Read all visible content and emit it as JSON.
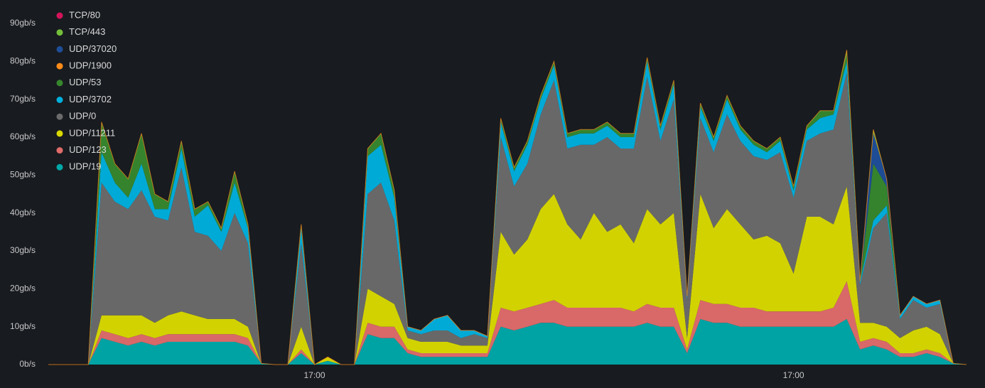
{
  "chart_data": {
    "type": "stacked-area",
    "categories": [
      null,
      null,
      null,
      null,
      null,
      null,
      null,
      null,
      null,
      null,
      null,
      null,
      null,
      null,
      null,
      null,
      null,
      null,
      null,
      null,
      "17:00",
      null,
      null,
      null,
      null,
      null,
      null,
      null,
      null,
      null,
      null,
      null,
      null,
      null,
      null,
      null,
      null,
      null,
      null,
      null,
      null,
      null,
      null,
      null,
      null,
      null,
      null,
      null,
      null,
      null,
      null,
      null,
      null,
      null,
      null,
      null,
      "17:00",
      null,
      null,
      null,
      null,
      null,
      null,
      null,
      null,
      null,
      null,
      null,
      null,
      null
    ],
    "ylim": [
      0,
      90
    ],
    "yticks": [
      {
        "value": 0,
        "label": "0b/s"
      },
      {
        "value": 10,
        "label": "10gb/s"
      },
      {
        "value": 20,
        "label": "20gb/s"
      },
      {
        "value": 30,
        "label": "30gb/s"
      },
      {
        "value": 40,
        "label": "40gb/s"
      },
      {
        "value": 50,
        "label": "50gb/s"
      },
      {
        "value": 60,
        "label": "60gb/s"
      },
      {
        "value": 70,
        "label": "70gb/s"
      },
      {
        "value": 80,
        "label": "80gb/s"
      },
      {
        "value": 90,
        "label": "90gb/s"
      }
    ],
    "grid": false,
    "legend": "top-left",
    "series": [
      {
        "name": "TCP/80",
        "color": "#d4145a",
        "values": [
          0,
          0,
          0,
          0,
          0,
          0,
          0,
          0,
          0,
          0,
          0,
          0,
          0,
          0,
          0,
          0,
          0,
          0,
          0,
          0,
          0,
          0,
          0,
          0,
          0,
          0,
          0,
          0,
          0,
          0,
          0,
          0,
          0,
          0,
          0,
          0,
          0,
          0,
          0,
          0,
          0,
          0,
          0,
          0,
          0,
          0,
          0,
          0,
          0,
          0,
          0,
          0,
          0,
          0,
          0,
          0,
          0,
          0,
          0,
          0,
          0,
          0,
          0,
          0,
          0,
          0,
          0,
          0,
          0,
          0
        ]
      },
      {
        "name": "TCP/443",
        "color": "#73bf3a",
        "values": [
          0,
          0,
          0,
          0,
          0,
          0,
          0,
          0,
          0,
          0,
          0,
          0,
          0,
          0,
          0,
          0,
          0,
          0,
          0,
          0,
          0,
          0,
          0,
          0,
          0,
          0,
          0,
          0,
          0,
          0,
          0,
          0,
          0,
          0,
          0,
          0,
          0,
          0,
          0,
          0,
          0,
          0,
          0,
          0,
          0,
          0,
          0,
          0,
          0,
          0,
          0,
          0,
          0,
          0,
          0,
          0,
          0,
          0,
          0,
          0,
          1,
          0,
          1,
          0,
          0,
          0,
          0,
          0,
          0,
          0
        ]
      },
      {
        "name": "UDP/37020",
        "color": "#1f4e99",
        "values": [
          0,
          0,
          0,
          0,
          0,
          0,
          0,
          0,
          0,
          0,
          0,
          0,
          0,
          0,
          0,
          0,
          0,
          0,
          0,
          0,
          0,
          0,
          0,
          0,
          0,
          0,
          0,
          0,
          0,
          0,
          0,
          0,
          0,
          0,
          0,
          0,
          0,
          0,
          0,
          0,
          0,
          0,
          0,
          0,
          0,
          0,
          0,
          0,
          0,
          0,
          0,
          0,
          0,
          0,
          0,
          0,
          0,
          0,
          0,
          0,
          0,
          0,
          8,
          2,
          0,
          0,
          0,
          0,
          0,
          0
        ]
      },
      {
        "name": "UDP/1900",
        "color": "#ff8c1a",
        "values": [
          0,
          0,
          0,
          0,
          0,
          0,
          0,
          0,
          0,
          0,
          0,
          0,
          0,
          0,
          0,
          0,
          0,
          0,
          0,
          0,
          0,
          0,
          0,
          0,
          0,
          0,
          0,
          0,
          0,
          0,
          0,
          0,
          0,
          0,
          0,
          0,
          0,
          0,
          0,
          0,
          0,
          0,
          0,
          0,
          0,
          0,
          0,
          0,
          0,
          0,
          0,
          0,
          0,
          0,
          0,
          0,
          0,
          0,
          0,
          0,
          0,
          0,
          0,
          0,
          0,
          0,
          0,
          0,
          0,
          0
        ]
      },
      {
        "name": "UDP/53",
        "color": "#37872d",
        "values": [
          0,
          0,
          0,
          0,
          8,
          5,
          5,
          8,
          4,
          2,
          2,
          2,
          1,
          1,
          3,
          1,
          0,
          0,
          0,
          1,
          0,
          0,
          0,
          0,
          2,
          3,
          2,
          0,
          0,
          0,
          0,
          0,
          0,
          0,
          1,
          1,
          1,
          1,
          1,
          1,
          1,
          1,
          1,
          1,
          1,
          1,
          1,
          1,
          0,
          1,
          1,
          1,
          1,
          1,
          1,
          1,
          1,
          1,
          2,
          1,
          2,
          0,
          15,
          5,
          0,
          0,
          0,
          0,
          0,
          0
        ]
      },
      {
        "name": "UDP/3702",
        "color": "#00b0dd",
        "values": [
          0,
          0,
          0,
          0,
          8,
          5,
          3,
          7,
          2,
          3,
          5,
          4,
          8,
          5,
          8,
          4,
          0,
          0,
          0,
          4,
          0,
          0,
          0,
          0,
          10,
          10,
          6,
          1,
          1,
          3,
          4,
          2,
          1,
          0.5,
          4,
          4,
          5,
          4,
          4,
          3,
          3,
          3,
          3,
          3,
          3,
          4,
          3,
          4,
          1,
          3,
          3,
          4,
          3,
          3,
          2,
          3,
          2,
          3,
          4,
          4,
          3,
          1,
          2,
          2,
          1,
          1,
          1,
          1,
          0,
          0
        ]
      },
      {
        "name": "UDP/0",
        "color": "#6b6b6b",
        "values": [
          0,
          0,
          0,
          0,
          35,
          30,
          28,
          33,
          28,
          25,
          38,
          22,
          22,
          18,
          28,
          22,
          0,
          0,
          0,
          22,
          0,
          0,
          0,
          0,
          25,
          30,
          22,
          2,
          2,
          3,
          3,
          2,
          3,
          2,
          25,
          18,
          20,
          25,
          30,
          20,
          25,
          18,
          25,
          20,
          25,
          35,
          22,
          30,
          10,
          20,
          20,
          25,
          22,
          22,
          20,
          24,
          20,
          20,
          22,
          25,
          30,
          10,
          25,
          30,
          5,
          8,
          5,
          8,
          0,
          0
        ]
      },
      {
        "name": "UDP/11211",
        "color": "#d9d900",
        "values": [
          0,
          0,
          0,
          0,
          4,
          5,
          6,
          5,
          4,
          5,
          6,
          5,
          4,
          4,
          4,
          3,
          0,
          0,
          0,
          6,
          0,
          1,
          0,
          0,
          9,
          8,
          6,
          3,
          3,
          3,
          3,
          2,
          2,
          2,
          20,
          15,
          18,
          25,
          28,
          22,
          18,
          25,
          20,
          22,
          18,
          25,
          22,
          25,
          3,
          28,
          20,
          25,
          22,
          18,
          20,
          18,
          10,
          25,
          25,
          22,
          25,
          5,
          4,
          4,
          4,
          6,
          6,
          5,
          0,
          0
        ]
      },
      {
        "name": "UDP/123",
        "color": "#e06b6b",
        "values": [
          0,
          0,
          0,
          0,
          2,
          2,
          2,
          2,
          2,
          2,
          2,
          2,
          2,
          2,
          2,
          2,
          0,
          0,
          0,
          1,
          0,
          0,
          0,
          0,
          3,
          3,
          3,
          1,
          1,
          1,
          1,
          1,
          1,
          1,
          5,
          5,
          5,
          5,
          6,
          5,
          5,
          5,
          5,
          5,
          4,
          5,
          5,
          5,
          1,
          5,
          5,
          5,
          5,
          5,
          4,
          4,
          4,
          4,
          4,
          5,
          10,
          2,
          2,
          2,
          1,
          1,
          1,
          1,
          0,
          0
        ]
      },
      {
        "name": "UDP/19",
        "color": "#00a8a8",
        "values": [
          0,
          0,
          0,
          0,
          7,
          6,
          5,
          6,
          5,
          6,
          6,
          6,
          6,
          6,
          6,
          5,
          0.3,
          0,
          0,
          3,
          0,
          1,
          0,
          0,
          8,
          7,
          7,
          3,
          2,
          2,
          2,
          2,
          2,
          2,
          10,
          9,
          10,
          11,
          11,
          10,
          10,
          10,
          10,
          10,
          10,
          11,
          10,
          10,
          3,
          12,
          11,
          11,
          10,
          10,
          10,
          10,
          10,
          10,
          10,
          10,
          12,
          4,
          5,
          4,
          2,
          2,
          3,
          2,
          0.3,
          0
        ]
      }
    ]
  }
}
